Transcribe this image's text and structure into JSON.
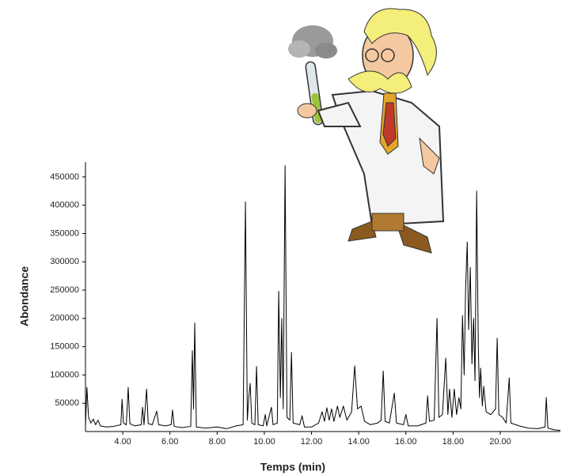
{
  "chart_data": {
    "type": "line",
    "x_label": "Temps (min)",
    "y_label": "Abondance",
    "x": [
      2.42,
      2.48,
      2.55,
      2.65,
      2.75,
      2.85,
      2.95,
      3.05,
      3.3,
      3.6,
      3.92,
      3.97,
      4.03,
      4.15,
      4.23,
      4.3,
      4.5,
      4.78,
      4.84,
      4.9,
      5.01,
      5.08,
      5.25,
      5.35,
      5.44,
      5.52,
      5.8,
      6.05,
      6.11,
      6.18,
      6.5,
      6.88,
      6.95,
      7.0,
      7.05,
      7.12,
      7.5,
      8.0,
      8.4,
      8.8,
      9.1,
      9.2,
      9.28,
      9.34,
      9.4,
      9.47,
      9.6,
      9.67,
      9.74,
      9.95,
      10.04,
      10.1,
      10.3,
      10.37,
      10.55,
      10.61,
      10.68,
      10.74,
      10.8,
      10.88,
      10.96,
      11.08,
      11.15,
      11.22,
      11.5,
      11.6,
      11.7,
      12.0,
      12.3,
      12.45,
      12.55,
      12.65,
      12.75,
      12.85,
      12.95,
      13.1,
      13.2,
      13.35,
      13.5,
      13.7,
      13.83,
      13.95,
      14.1,
      14.25,
      14.5,
      14.8,
      14.95,
      15.04,
      15.12,
      15.3,
      15.51,
      15.6,
      15.9,
      16.0,
      16.1,
      16.5,
      16.85,
      16.92,
      17.0,
      17.2,
      17.32,
      17.4,
      17.55,
      17.69,
      17.78,
      17.85,
      17.95,
      18.05,
      18.15,
      18.25,
      18.33,
      18.4,
      18.47,
      18.53,
      18.6,
      18.66,
      18.73,
      18.8,
      18.87,
      18.93,
      19.0,
      19.07,
      19.12,
      19.17,
      19.24,
      19.3,
      19.4,
      19.6,
      19.8,
      19.87,
      19.94,
      20.1,
      20.25,
      20.38,
      20.45,
      20.8,
      21.2,
      21.6,
      21.9,
      21.95,
      22.02,
      22.3,
      22.55
    ],
    "series": [
      {
        "color": "#000000",
        "values": [
          10000,
          78000,
          25000,
          15000,
          22000,
          12000,
          20000,
          10000,
          8000,
          9000,
          12000,
          57000,
          15000,
          12000,
          78000,
          14000,
          10000,
          12000,
          43000,
          12000,
          75000,
          14000,
          12000,
          25000,
          36000,
          12000,
          10000,
          12000,
          38000,
          9000,
          7000,
          9000,
          143000,
          40000,
          192000,
          8000,
          6000,
          8000,
          5000,
          10000,
          12000,
          406000,
          20000,
          60000,
          85000,
          15000,
          12000,
          115000,
          12000,
          10000,
          30000,
          10000,
          43000,
          12000,
          15000,
          248000,
          60000,
          200000,
          40000,
          470000,
          25000,
          20000,
          140000,
          15000,
          12000,
          28000,
          8000,
          8000,
          15000,
          35000,
          18000,
          42000,
          20000,
          40000,
          18000,
          45000,
          25000,
          45000,
          20000,
          35000,
          116000,
          40000,
          45000,
          18000,
          12000,
          15000,
          20000,
          107000,
          18000,
          15000,
          68000,
          15000,
          12000,
          30000,
          10000,
          10000,
          15000,
          63000,
          18000,
          20000,
          200000,
          25000,
          30000,
          130000,
          30000,
          75000,
          25000,
          75000,
          30000,
          60000,
          40000,
          205000,
          100000,
          250000,
          335000,
          180000,
          290000,
          120000,
          200000,
          90000,
          425000,
          150000,
          60000,
          112000,
          45000,
          80000,
          35000,
          30000,
          40000,
          165000,
          30000,
          25000,
          15000,
          95000,
          15000,
          10000,
          6000,
          5000,
          8000,
          60000,
          6000,
          3000,
          2000
        ]
      }
    ],
    "xlim": [
      2.42,
      22.55
    ],
    "ylim": [
      0,
      475000
    ],
    "xticks": [
      {
        "value": 4,
        "label": "4.00"
      },
      {
        "value": 6,
        "label": "6.00"
      },
      {
        "value": 8,
        "label": "8.00"
      },
      {
        "value": 10,
        "label": "10.00"
      },
      {
        "value": 12,
        "label": "12.00"
      },
      {
        "value": 14,
        "label": "14.00"
      },
      {
        "value": 16,
        "label": "16.00"
      },
      {
        "value": 18,
        "label": "18.00"
      },
      {
        "value": 20,
        "label": "20.00"
      }
    ],
    "yticks": [
      50000,
      100000,
      150000,
      200000,
      250000,
      300000,
      350000,
      400000,
      450000
    ],
    "grid": false
  }
}
